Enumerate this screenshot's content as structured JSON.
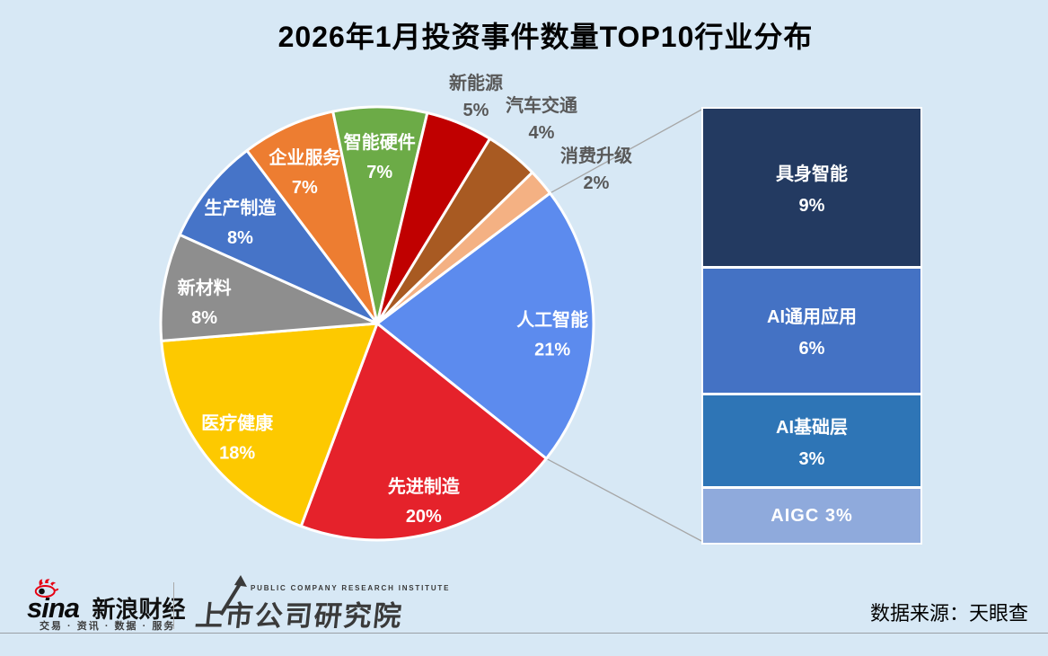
{
  "title": "2026年1月投资事件数量TOP10行业分布",
  "source": "数据来源：天眼查",
  "footer": {
    "sina_logo_text": "sina",
    "sina_brand": "新浪财经",
    "sina_tagline": "交易 · 资讯 · 数据 · 服务",
    "institute_name": "上市公司研究院",
    "institute_subtitle": "PUBLIC COMPANY RESEARCH INSTITUTE"
  },
  "chart_data": {
    "type": "pie",
    "title": "2026年1月投资事件数量TOP10行业分布",
    "unit": "%",
    "start_angle_deg": 53,
    "colors": {
      "background": "#d7e8f5",
      "outside_label": "#595959",
      "inside_label": "#ffffff",
      "connector_line": "#a6a6a6",
      "slice_border": "#ffffff"
    },
    "slices": [
      {
        "label": "人工智能",
        "value": 21,
        "color": "#5c8bee",
        "label_inside": true
      },
      {
        "label": "先进制造",
        "value": 20,
        "color": "#e5222b",
        "label_inside": true
      },
      {
        "label": "医疗健康",
        "value": 18,
        "color": "#fdc900",
        "label_inside": true
      },
      {
        "label": "新材料",
        "value": 8,
        "color": "#8e8e8e",
        "label_inside": true
      },
      {
        "label": "生产制造",
        "value": 8,
        "color": "#4674c8",
        "label_inside": true
      },
      {
        "label": "企业服务",
        "value": 7,
        "color": "#ed7d31",
        "label_inside": true
      },
      {
        "label": "智能硬件",
        "value": 7,
        "color": "#6cab47",
        "label_inside": true
      },
      {
        "label": "新能源",
        "value": 5,
        "color": "#c00000",
        "label_inside": false,
        "label_pos": [
          530,
          93
        ]
      },
      {
        "label": "汽车交通",
        "value": 4,
        "color": "#a85a22",
        "label_inside": false,
        "label_pos": [
          603,
          118
        ]
      },
      {
        "label": "消费升级",
        "value": 2,
        "color": "#f4b183",
        "label_inside": false,
        "label_pos": [
          664,
          174
        ]
      }
    ],
    "breakdown": {
      "linked_slice": "人工智能",
      "items": [
        {
          "label": "具身智能",
          "value": 9,
          "color": "#233a61",
          "inline": false
        },
        {
          "label": "AI通用应用",
          "value": 6,
          "color": "#4472c4",
          "inline": false
        },
        {
          "label": "AI基础层",
          "value": 3,
          "color": "#2e75b6",
          "inline": false
        },
        {
          "label": "AIGC",
          "value": 3,
          "color": "#8faadc",
          "inline": true
        }
      ]
    }
  }
}
